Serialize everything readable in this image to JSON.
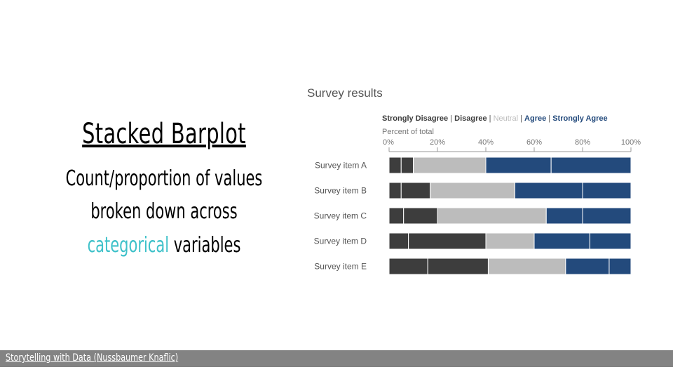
{
  "slide": {
    "title": "Stacked Barplot",
    "line1": "Count/proportion of values",
    "line2": "broken down across",
    "line3_accent": "categorical",
    "line3_rest": " variables",
    "accent_color": "#3ec1c9"
  },
  "footer": {
    "link_text": "Storytelling with Data (Nussbaumer Knaflic)",
    "bar_color": "#838383"
  },
  "chart_data": {
    "type": "bar",
    "orientation": "horizontal",
    "stacked": true,
    "title": "Survey results",
    "axis_title": "Percent of total",
    "legend_placement": "top",
    "legend": [
      {
        "name": "Strongly Disagree",
        "color": "#3d3d3d",
        "sep": " | "
      },
      {
        "name": "Disagree",
        "color": "#3d3d3d",
        "sep": " | "
      },
      {
        "name": "Neutral",
        "color": "#bcbcbc",
        "sep": " | "
      },
      {
        "name": "Agree",
        "color": "#234a7c",
        "sep": " | "
      },
      {
        "name": "Strongly Agree",
        "color": "#234a7c",
        "sep": ""
      }
    ],
    "x_ticks": [
      "0%",
      "20%",
      "40%",
      "60%",
      "80%",
      "100%"
    ],
    "xlim": [
      0,
      100
    ],
    "categories": [
      "Survey item A",
      "Survey item B",
      "Survey item C",
      "Survey item D",
      "Survey item E"
    ],
    "series": [
      {
        "name": "Strongly Disagree",
        "color": "#3d3d3d",
        "values": [
          5,
          5,
          6,
          8,
          16
        ]
      },
      {
        "name": "Disagree",
        "color": "#3d3d3d",
        "values": [
          5,
          12,
          14,
          32,
          25
        ]
      },
      {
        "name": "Neutral",
        "color": "#bcbcbc",
        "values": [
          30,
          35,
          45,
          20,
          32
        ]
      },
      {
        "name": "Agree",
        "color": "#234a7c",
        "values": [
          27,
          28,
          15,
          23,
          18
        ]
      },
      {
        "name": "Strongly Agree",
        "color": "#234a7c",
        "values": [
          33,
          20,
          20,
          17,
          9
        ]
      }
    ]
  }
}
